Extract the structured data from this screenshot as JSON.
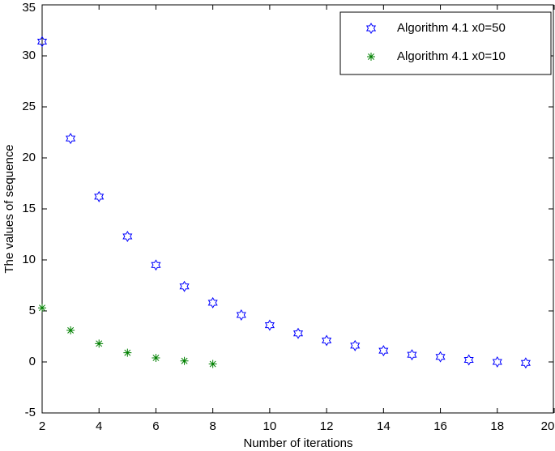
{
  "chart_data": {
    "type": "scatter",
    "xlabel": "Number of iterations",
    "ylabel": "The values of sequence",
    "xlim": [
      2,
      20
    ],
    "xticks": [
      2,
      4,
      6,
      8,
      10,
      12,
      14,
      16,
      18,
      20
    ],
    "ylim": [
      -5,
      35
    ],
    "yticks": [
      -5,
      0,
      5,
      10,
      15,
      20,
      25,
      30,
      35
    ],
    "grid": false,
    "legend": "upper right",
    "series": [
      {
        "name": "Algorithm 4.1 x0=50",
        "color": "#0000ff",
        "marker": "hexagram",
        "x": [
          2,
          3,
          4,
          5,
          6,
          7,
          8,
          9,
          10,
          11,
          12,
          13,
          14,
          15,
          16,
          17,
          18,
          19
        ],
        "values": [
          31.4,
          21.9,
          16.2,
          12.3,
          9.5,
          7.4,
          5.8,
          4.6,
          3.6,
          2.8,
          2.1,
          1.6,
          1.1,
          0.7,
          0.5,
          0.2,
          0.0,
          -0.1
        ]
      },
      {
        "name": "Algorithm 4.1 x0=10",
        "color": "#008000",
        "marker": "asterisk",
        "x": [
          2,
          3,
          4,
          5,
          6,
          7,
          8
        ],
        "values": [
          5.3,
          3.1,
          1.8,
          0.9,
          0.4,
          0.1,
          -0.2
        ]
      }
    ]
  }
}
